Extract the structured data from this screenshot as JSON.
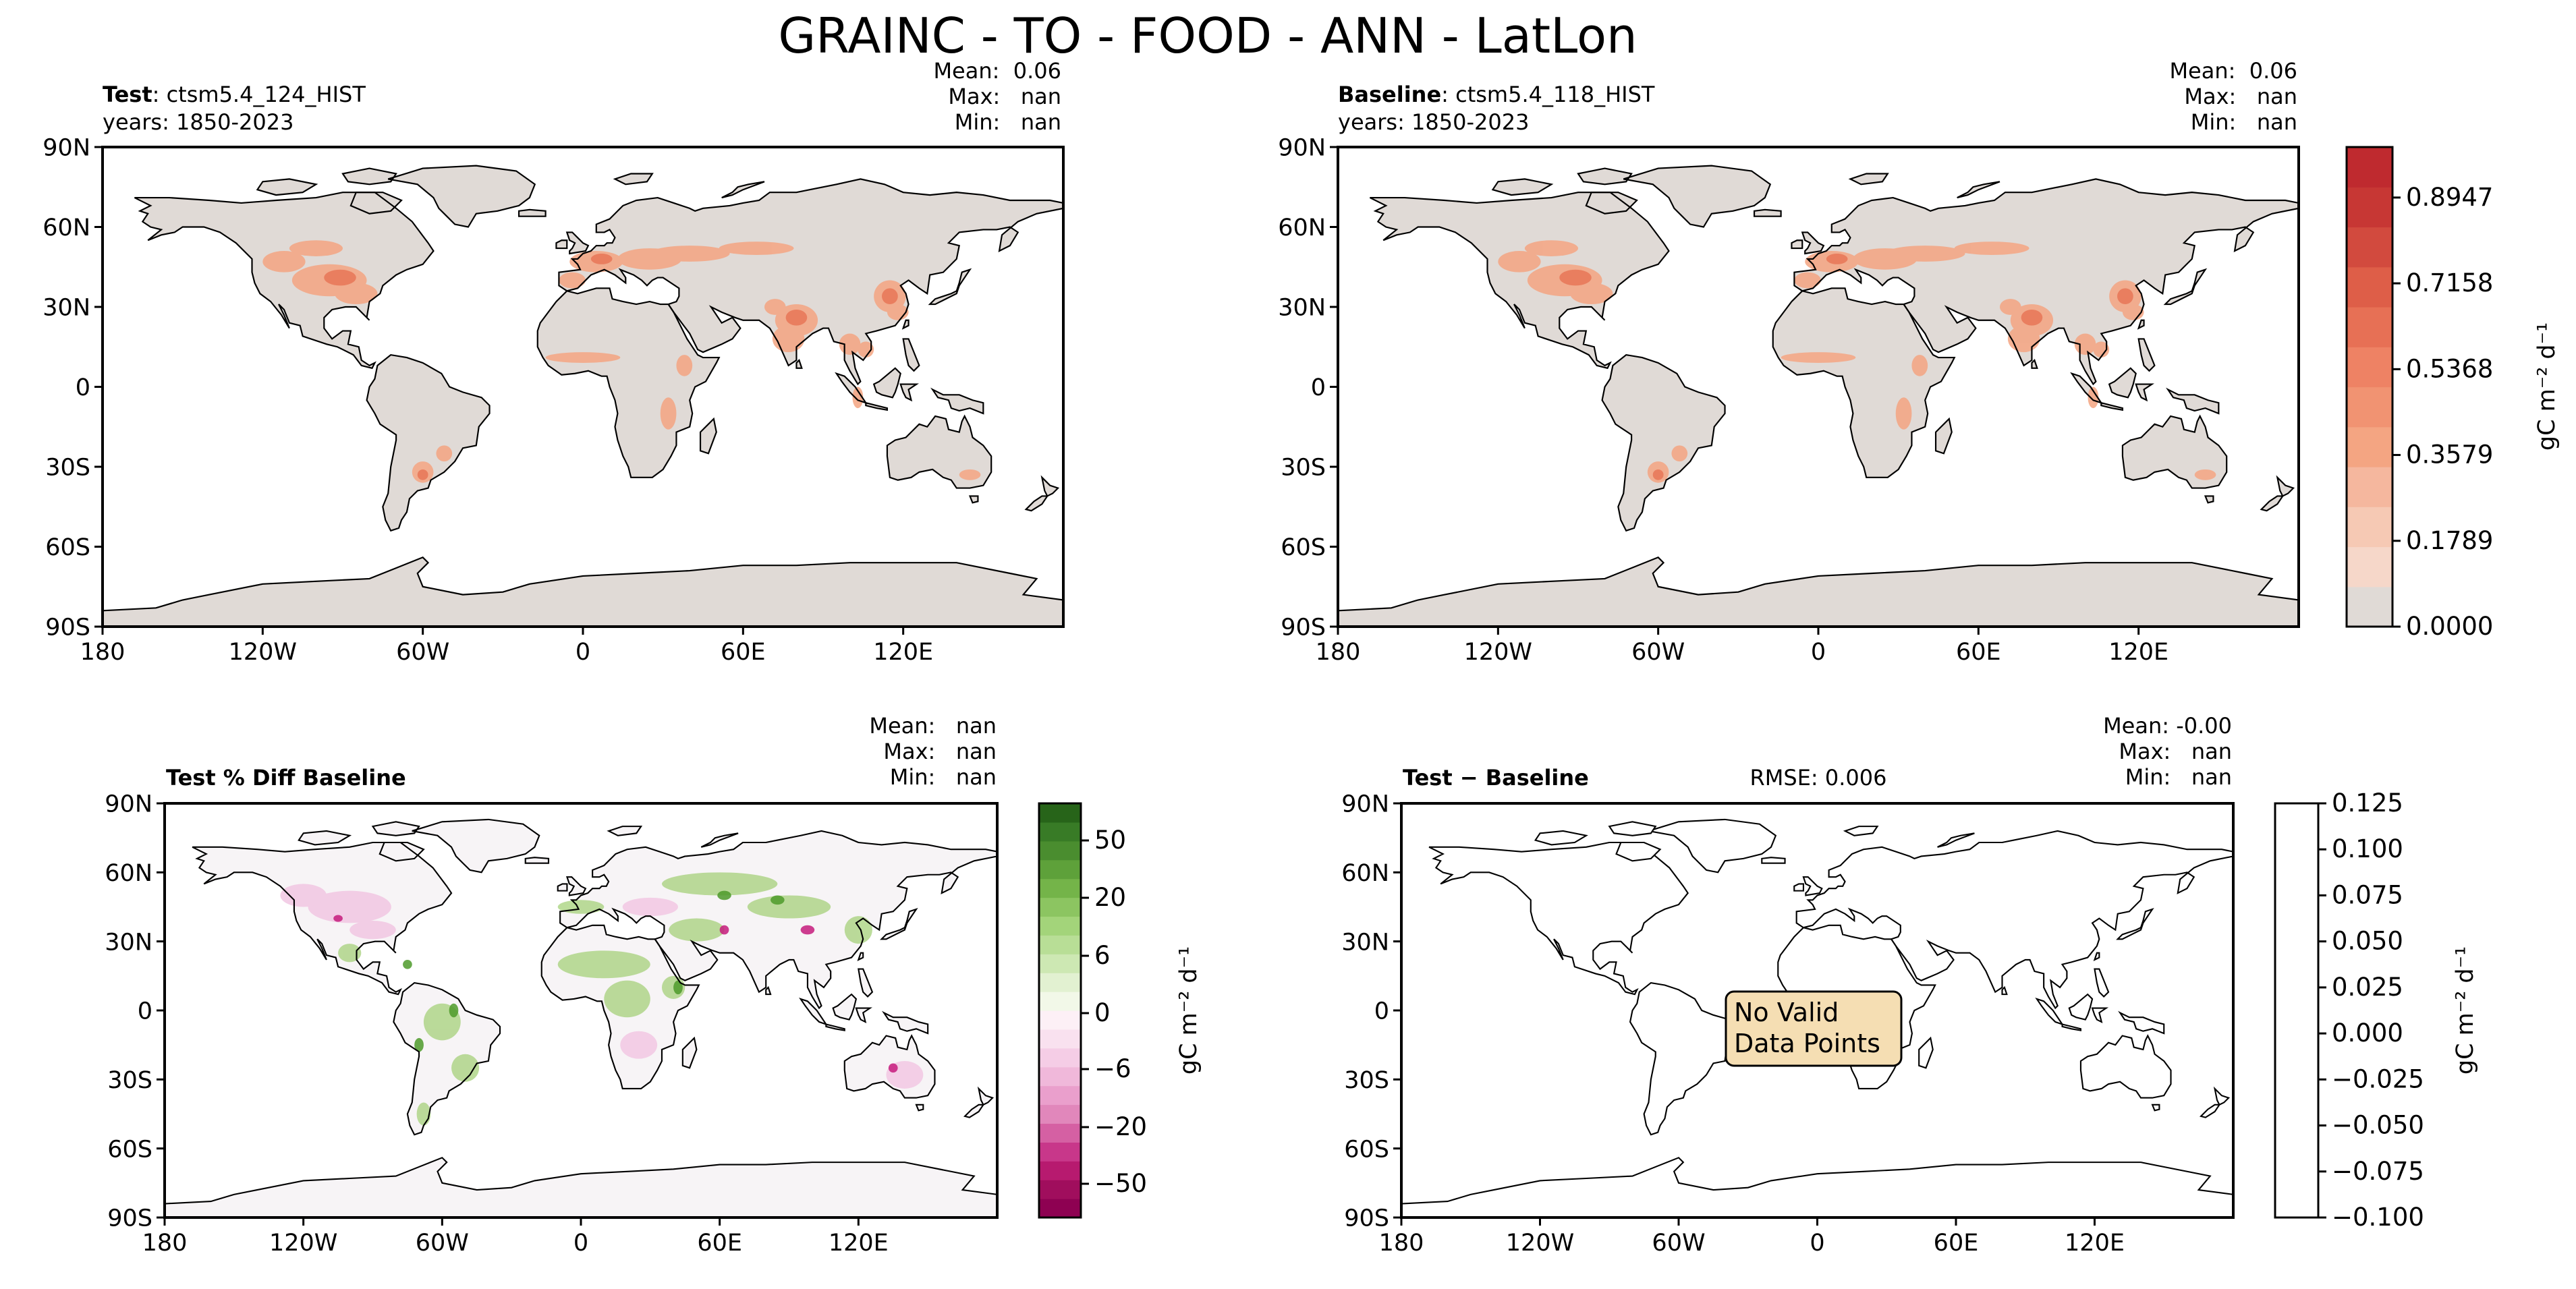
{
  "figure": {
    "title": "GRAINC - TO - FOOD - ANN - LatLon"
  },
  "axis_ticks": {
    "lon": [
      "180",
      "120W",
      "60W",
      "0",
      "60E",
      "120E"
    ],
    "lat": [
      "90N",
      "60N",
      "30N",
      "0",
      "30S",
      "60S",
      "90S"
    ]
  },
  "panels": {
    "test": {
      "title_bold": "Test",
      "title_rest": ": ctsm5.4_124_HIST",
      "years": "years: 1850-2023",
      "stats": [
        "Mean:  0.06",
        "Max:   nan",
        "Min:   nan"
      ]
    },
    "baseline": {
      "title_bold": "Baseline",
      "title_rest": ": ctsm5.4_118_HIST",
      "years": "years: 1850-2023",
      "stats": [
        "Mean:  0.06",
        "Max:   nan",
        "Min:   nan"
      ]
    },
    "pctdiff": {
      "title": "Test % Diff Baseline",
      "stats": [
        "Mean:   nan",
        "Max:   nan",
        "Min:   nan"
      ]
    },
    "diff": {
      "title": "Test − Baseline",
      "rmse": "RMSE: 0.006",
      "stats": [
        "Mean: -0.00",
        "Max:   nan",
        "Min:   nan"
      ],
      "message_line1": "No Valid",
      "message_line2": "Data Points"
    }
  },
  "colorbars": {
    "main": {
      "tick_labels": [
        "0.0000",
        "0.1789",
        "0.3579",
        "0.5368",
        "0.7158",
        "0.8947"
      ],
      "label": "gC m⁻² d⁻¹"
    },
    "pctdiff": {
      "tick_labels": [
        "50",
        "20",
        "6",
        "0",
        "−6",
        "−20",
        "−50"
      ],
      "label": "gC m⁻² d⁻¹"
    },
    "diff": {
      "tick_labels": [
        "0.125",
        "0.100",
        "0.075",
        "0.050",
        "0.025",
        "0.000",
        "−0.025",
        "−0.050",
        "−0.075",
        "−0.100"
      ],
      "label": "gC m⁻² d⁻¹"
    }
  },
  "colors": {
    "land_grey": "#e0dad6",
    "crop_orange": "#f4a582",
    "crop_dark": "#ec7d5f",
    "no_data_box": "#f5deb3"
  },
  "chart_data": [
    {
      "type": "heatmap",
      "panel": "Test",
      "title": "Test: ctsm5.4_124_HIST",
      "subtitle": "years: 1850-2023",
      "x_ticks": [
        "180",
        "120W",
        "60W",
        "0",
        "60E",
        "120E"
      ],
      "y_ticks": [
        "90N",
        "60N",
        "30N",
        "0",
        "30S",
        "60S",
        "90S"
      ],
      "xlim": [
        -180,
        180
      ],
      "ylim": [
        -90,
        90
      ],
      "stats": {
        "mean": 0.06,
        "max": "nan",
        "min": "nan"
      },
      "colorbar": {
        "ticks": [
          0.0,
          0.1789,
          0.3579,
          0.5368,
          0.7158,
          0.8947
        ],
        "range": [
          0,
          1
        ],
        "label": "gC m⁻² d⁻¹"
      }
    },
    {
      "type": "heatmap",
      "panel": "Baseline",
      "title": "Baseline: ctsm5.4_118_HIST",
      "subtitle": "years: 1850-2023",
      "x_ticks": [
        "180",
        "120W",
        "60W",
        "0",
        "60E",
        "120E"
      ],
      "y_ticks": [
        "90N",
        "60N",
        "30N",
        "0",
        "30S",
        "60S",
        "90S"
      ],
      "xlim": [
        -180,
        180
      ],
      "ylim": [
        -90,
        90
      ],
      "stats": {
        "mean": 0.06,
        "max": "nan",
        "min": "nan"
      },
      "colorbar": {
        "ticks": [
          0.0,
          0.1789,
          0.3579,
          0.5368,
          0.7158,
          0.8947
        ],
        "range": [
          0,
          1
        ],
        "label": "gC m⁻² d⁻¹"
      }
    },
    {
      "type": "heatmap",
      "panel": "Test % Diff Baseline",
      "title": "Test % Diff Baseline",
      "x_ticks": [
        "180",
        "120W",
        "60W",
        "0",
        "60E",
        "120E"
      ],
      "y_ticks": [
        "90N",
        "60N",
        "30N",
        "0",
        "30S",
        "60S",
        "90S"
      ],
      "xlim": [
        -180,
        180
      ],
      "ylim": [
        -90,
        90
      ],
      "stats": {
        "mean": "nan",
        "max": "nan",
        "min": "nan"
      },
      "colorbar": {
        "ticks": [
          -50,
          -20,
          -6,
          0,
          6,
          20,
          50
        ],
        "label": "gC m⁻² d⁻¹"
      }
    },
    {
      "type": "heatmap",
      "panel": "Test − Baseline",
      "title": "Test − Baseline",
      "x_ticks": [
        "180",
        "120W",
        "60W",
        "0",
        "60E",
        "120E"
      ],
      "y_ticks": [
        "90N",
        "60N",
        "30N",
        "0",
        "30S",
        "60S",
        "90S"
      ],
      "xlim": [
        -180,
        180
      ],
      "ylim": [
        -90,
        90
      ],
      "stats": {
        "mean": -0.0,
        "max": "nan",
        "min": "nan",
        "rmse": 0.006
      },
      "annotation": "No Valid Data Points",
      "colorbar": {
        "ticks": [
          -0.1,
          -0.075,
          -0.05,
          -0.025,
          0.0,
          0.025,
          0.05,
          0.075,
          0.1,
          0.125
        ],
        "range": [
          -0.1,
          0.125
        ],
        "label": "gC m⁻² d⁻¹"
      }
    }
  ]
}
